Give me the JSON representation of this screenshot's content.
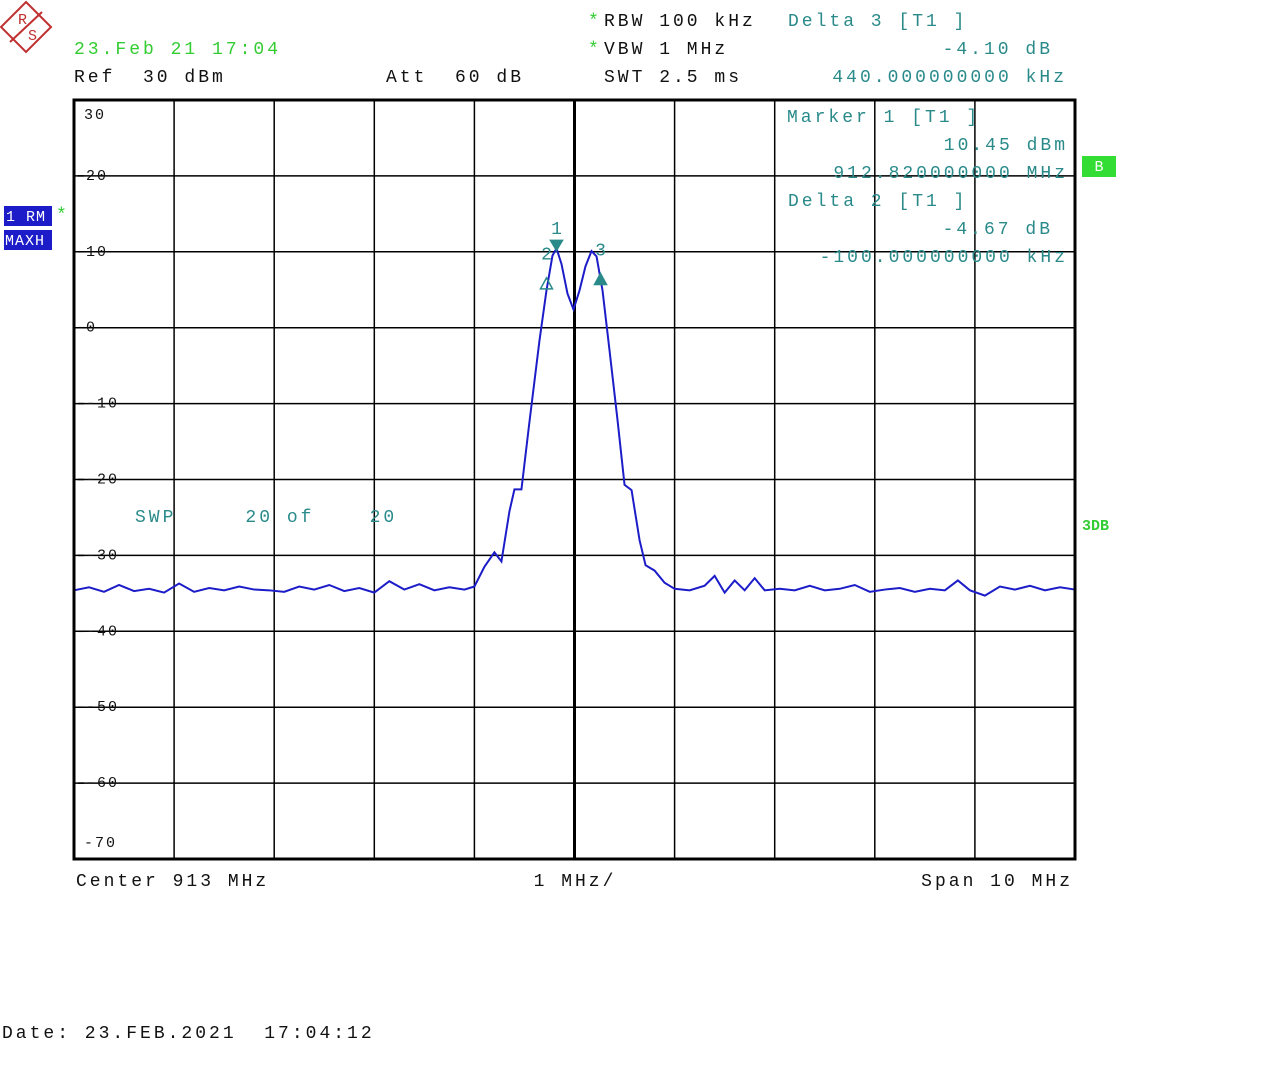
{
  "logo": {
    "top": "R",
    "bottom": "S"
  },
  "header": {
    "timestamp": "23.Feb 21 17:04",
    "ref": "Ref  30 dBm",
    "att": "Att  60 dB",
    "rbw_flag": "*",
    "rbw": "RBW 100 kHz",
    "vbw_flag": "*",
    "vbw": "VBW 1 MHz",
    "swt": "SWT 2.5 ms",
    "delta3_title": "Delta 3 [T1 ]",
    "delta3_level": "-4.10 dB",
    "delta3_freq": "440.000000000 kHz"
  },
  "marker_box": {
    "marker1_title": "Marker 1 [T1 ]",
    "marker1_level": "10.45 dBm",
    "marker1_freq": "912.820000000 MHz",
    "delta2_title": "Delta 2 [T1 ]",
    "delta2_level": "-4.67 dB",
    "delta2_freq": "-100.000000000 kHz"
  },
  "side": {
    "trace": "1 RM",
    "trace_flag": "*",
    "detector": "MAXH",
    "b_badge": "B",
    "db_badge": "3DB"
  },
  "sweep": "SWP     20 of    20",
  "footer": {
    "center": "Center 913 MHz",
    "div": "1 MHz/",
    "span": "Span 10 MHz",
    "date": "Date: 23.FEB.2021  17:04:12"
  },
  "chart_data": {
    "type": "line",
    "x": [
      908.0,
      908.15,
      908.3,
      908.45,
      908.6,
      908.75,
      908.9,
      909.05,
      909.2,
      909.35,
      909.5,
      909.65,
      909.8,
      909.95,
      910.1,
      910.25,
      910.4,
      910.55,
      910.7,
      910.85,
      911.0,
      911.15,
      911.3,
      911.45,
      911.6,
      911.75,
      911.9,
      912.0,
      912.1,
      912.2,
      912.27,
      912.35,
      912.4,
      912.47,
      912.55,
      912.65,
      912.72,
      912.78,
      912.82,
      912.87,
      912.93,
      912.99,
      913.05,
      913.11,
      913.17,
      913.22,
      913.28,
      913.35,
      913.43,
      913.5,
      913.57,
      913.65,
      913.71,
      913.8,
      913.9,
      914.0,
      914.15,
      914.3,
      914.4,
      914.5,
      914.6,
      914.7,
      914.8,
      914.9,
      915.05,
      915.2,
      915.35,
      915.5,
      915.65,
      915.8,
      915.95,
      916.1,
      916.25,
      916.4,
      916.55,
      916.7,
      916.83,
      916.95,
      917.1,
      917.25,
      917.4,
      917.55,
      917.7,
      917.85,
      918.0
    ],
    "series": [
      {
        "color": "#1c1cc8",
        "values": [
          -34.6,
          -34.2,
          -34.8,
          -33.9,
          -34.7,
          -34.4,
          -34.9,
          -33.7,
          -34.8,
          -34.3,
          -34.6,
          -34.1,
          -34.5,
          -34.6,
          -34.8,
          -34.1,
          -34.5,
          -33.9,
          -34.7,
          -34.3,
          -34.9,
          -33.4,
          -34.5,
          -33.8,
          -34.6,
          -34.2,
          -34.5,
          -34.1,
          -31.5,
          -29.6,
          -30.8,
          -24.2,
          -21.3,
          -21.3,
          -12.4,
          -1.7,
          4.9,
          9.5,
          10.45,
          8.4,
          4.5,
          2.4,
          4.9,
          8.1,
          10.1,
          9.4,
          4.9,
          -3.0,
          -12.2,
          -20.7,
          -21.4,
          -28.0,
          -31.3,
          -32.0,
          -33.6,
          -34.4,
          -34.6,
          -34.0,
          -32.7,
          -34.9,
          -33.3,
          -34.6,
          -33.0,
          -34.6,
          -34.4,
          -34.6,
          -34.0,
          -34.6,
          -34.4,
          -33.9,
          -34.8,
          -34.5,
          -34.3,
          -34.8,
          -34.4,
          -34.6,
          -33.3,
          -34.6,
          -35.3,
          -34.1,
          -34.5,
          -34.0,
          -34.6,
          -34.2,
          -34.5
        ]
      }
    ],
    "markers": [
      {
        "label": "1",
        "x": 912.82,
        "y": 10.45,
        "style": "down-filled"
      },
      {
        "label": "2",
        "x": 912.72,
        "y": 5.78,
        "style": "up-open"
      },
      {
        "label": "3",
        "x": 913.26,
        "y": 6.35,
        "style": "up-filled"
      }
    ],
    "marker_color": "#2a8a8a",
    "xlim": [
      908,
      918
    ],
    "xticks": [
      908,
      909,
      910,
      911,
      912,
      913,
      914,
      915,
      916,
      917,
      918
    ],
    "center_x": 913,
    "ylim": [
      -70,
      30
    ],
    "yticks": [
      30,
      20,
      10,
      0,
      -10,
      -20,
      -30,
      -40,
      -50,
      -60,
      -70
    ],
    "grid": true
  }
}
